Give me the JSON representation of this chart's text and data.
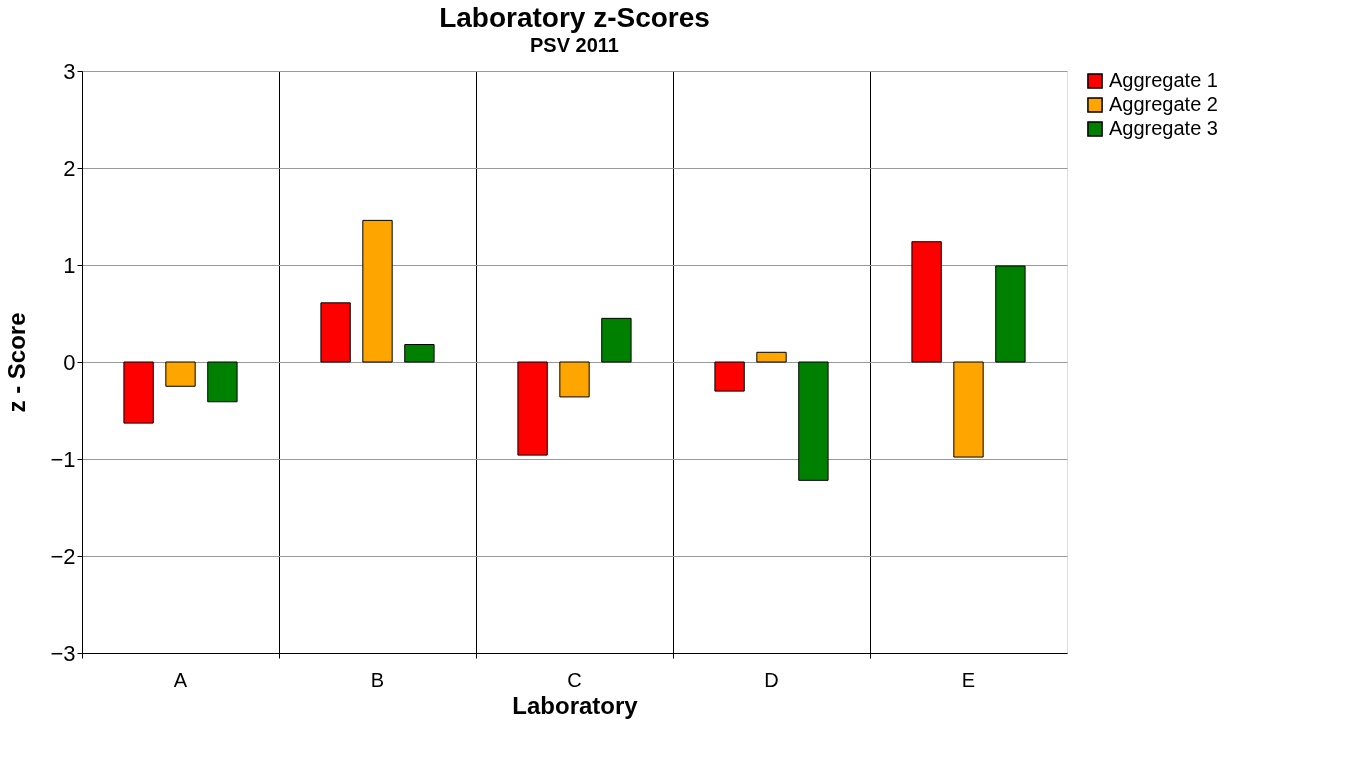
{
  "chart_data": {
    "type": "bar",
    "title": "Laboratory z-Scores",
    "subtitle": "PSV 2011",
    "xlabel": "Laboratory",
    "ylabel": "z - Score",
    "categories": [
      "A",
      "B",
      "C",
      "D",
      "E"
    ],
    "series": [
      {
        "name": "Aggregate 1",
        "color": "#ff0000",
        "values": [
          -0.63,
          0.61,
          -0.96,
          -0.3,
          1.24
        ]
      },
      {
        "name": "Aggregate 2",
        "color": "#ffa500",
        "values": [
          -0.25,
          1.46,
          -0.36,
          0.1,
          -0.98
        ]
      },
      {
        "name": "Aggregate 3",
        "color": "#008000",
        "values": [
          -0.41,
          0.18,
          0.45,
          -1.22,
          0.99
        ]
      }
    ],
    "ylim": [
      -3,
      3
    ],
    "yticks": [
      -3,
      -2,
      -1,
      0,
      1,
      2,
      3
    ],
    "grid": true,
    "legend": "right"
  }
}
